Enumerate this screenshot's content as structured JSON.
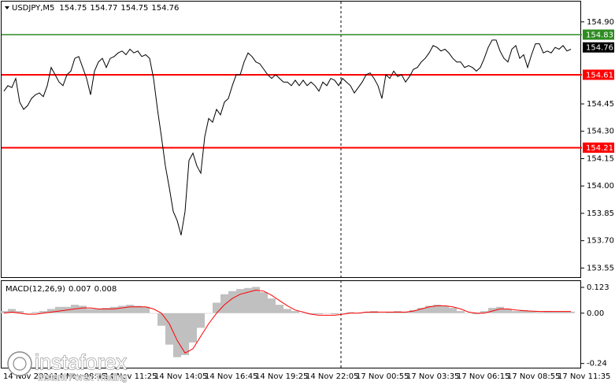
{
  "chart_data": [
    {
      "type": "line",
      "title": "USDJPY,M5",
      "ohlc": [
        154.75,
        154.77,
        154.75,
        154.76
      ],
      "color": "#000000",
      "values": [
        154.52,
        154.55,
        154.54,
        154.59,
        154.46,
        154.42,
        154.44,
        154.48,
        154.5,
        154.51,
        154.49,
        154.55,
        154.65,
        154.61,
        154.57,
        154.55,
        154.61,
        154.63,
        154.7,
        154.71,
        154.65,
        154.59,
        154.5,
        154.63,
        154.68,
        154.7,
        154.65,
        154.7,
        154.71,
        154.73,
        154.74,
        154.72,
        154.75,
        154.73,
        154.74,
        154.71,
        154.72,
        154.7,
        154.59,
        154.42,
        154.27,
        154.11,
        153.99,
        153.86,
        153.81,
        153.73,
        153.86,
        154.14,
        154.18,
        154.11,
        154.07,
        154.27,
        154.37,
        154.35,
        154.42,
        154.39,
        154.46,
        154.48,
        154.55,
        154.61,
        154.61,
        154.68,
        154.73,
        154.71,
        154.68,
        154.67,
        154.64,
        154.61,
        154.59,
        154.61,
        154.59,
        154.57,
        154.57,
        154.55,
        154.58,
        154.55,
        154.58,
        154.55,
        154.57,
        154.55,
        154.52,
        154.57,
        154.55,
        154.59,
        154.58,
        154.55,
        154.59,
        154.57,
        154.55,
        154.51,
        154.54,
        154.57,
        154.61,
        154.62,
        154.59,
        154.55,
        154.48,
        154.61,
        154.59,
        154.63,
        154.6,
        154.61,
        154.57,
        154.6,
        154.64,
        154.65,
        154.68,
        154.7,
        154.73,
        154.77,
        154.76,
        154.74,
        154.75,
        154.73,
        154.7,
        154.68,
        154.68,
        154.65,
        154.66,
        154.65,
        154.63,
        154.65,
        154.7,
        154.76,
        154.8,
        154.8,
        154.74,
        154.7,
        154.68,
        154.75,
        154.77,
        154.7,
        154.72,
        154.65,
        154.72,
        154.78,
        154.78,
        154.73,
        154.74,
        154.73,
        154.76,
        154.75,
        154.77,
        154.74,
        154.75
      ],
      "ylim": [
        153.5,
        155.02
      ],
      "yticks": [
        {
          "value": 154.9,
          "label": "154.90"
        },
        {
          "value": 154.45,
          "label": "154.45"
        },
        {
          "value": 154.3,
          "label": "154.30"
        },
        {
          "value": 154.15,
          "label": "154.15"
        },
        {
          "value": 154.0,
          "label": "154.00"
        },
        {
          "value": 153.85,
          "label": "153.85"
        },
        {
          "value": 153.7,
          "label": "153.70"
        },
        {
          "value": 153.55,
          "label": "153.55"
        }
      ],
      "levels": [
        {
          "value": 154.83,
          "color": "#2e8b22"
        },
        {
          "value": 154.61,
          "color": "#ff0000"
        },
        {
          "value": 154.21,
          "color": "#ff0000"
        }
      ],
      "x_labels": [
        "14 Nov 2024",
        "14 Nov 08:45",
        "14 Nov 11:25",
        "14 Nov 14:05",
        "14 Nov 16:45",
        "14 Nov 19:25",
        "14 Nov 22:05",
        "17 Nov 00:55",
        "17 Nov 03:35",
        "17 Nov 06:15",
        "17 Nov 08:55",
        "17 Nov 11:35"
      ]
    },
    {
      "type": "macd",
      "title": "MACD(12,26,9)",
      "histogram_color": "#c0c0c0",
      "signal_color": "#ff0000",
      "histogram": [
        0.01,
        0.02,
        0.01,
        0.0,
        0.005,
        0.01,
        0.02,
        0.03,
        0.03,
        0.04,
        0.035,
        0.02,
        0.02,
        0.025,
        0.03,
        0.035,
        0.04,
        0.035,
        0.03,
        0.0,
        -0.06,
        -0.15,
        -0.21,
        -0.2,
        -0.14,
        -0.07,
        0.0,
        0.05,
        0.09,
        0.105,
        0.115,
        0.12,
        0.125,
        0.1,
        0.07,
        0.04,
        0.02,
        0.01,
        0.0,
        -0.005,
        -0.005,
        0.0,
        -0.005,
        0.0,
        0.005,
        0.0,
        0.005,
        0.01,
        0.0,
        0.005,
        0.01,
        0.005,
        0.015,
        0.025,
        0.035,
        0.04,
        0.035,
        0.025,
        0.01,
        0.0,
        -0.005,
        0.01,
        0.025,
        0.03,
        0.02,
        0.01,
        0.015,
        0.01,
        0.005,
        0.01,
        0.008,
        0.008,
        0.007
      ],
      "signal": [
        0.0,
        0.005,
        0.0,
        -0.005,
        -0.005,
        0.0,
        0.005,
        0.01,
        0.015,
        0.02,
        0.025,
        0.025,
        0.02,
        0.02,
        0.02,
        0.025,
        0.03,
        0.03,
        0.03,
        0.02,
        0.0,
        -0.05,
        -0.13,
        -0.19,
        -0.17,
        -0.11,
        -0.05,
        0.0,
        0.04,
        0.07,
        0.09,
        0.1,
        0.11,
        0.105,
        0.085,
        0.06,
        0.035,
        0.015,
        0.005,
        -0.005,
        -0.01,
        -0.01,
        -0.01,
        -0.005,
        0.0,
        0.0,
        0.005,
        0.005,
        0.005,
        0.005,
        0.005,
        0.005,
        0.01,
        0.02,
        0.03,
        0.035,
        0.035,
        0.03,
        0.02,
        0.005,
        0.0,
        0.0,
        0.01,
        0.02,
        0.02,
        0.015,
        0.012,
        0.01,
        0.008,
        0.008,
        0.008,
        0.008,
        0.008
      ],
      "ylim": [
        -0.26,
        0.153
      ],
      "yticks": [
        0.123,
        {
          "value": 0,
          "label": "0.00"
        },
        -0.24
      ]
    }
  ],
  "watermark": {
    "brand": "instaforex",
    "tagline": "Instant Forex Trading"
  }
}
